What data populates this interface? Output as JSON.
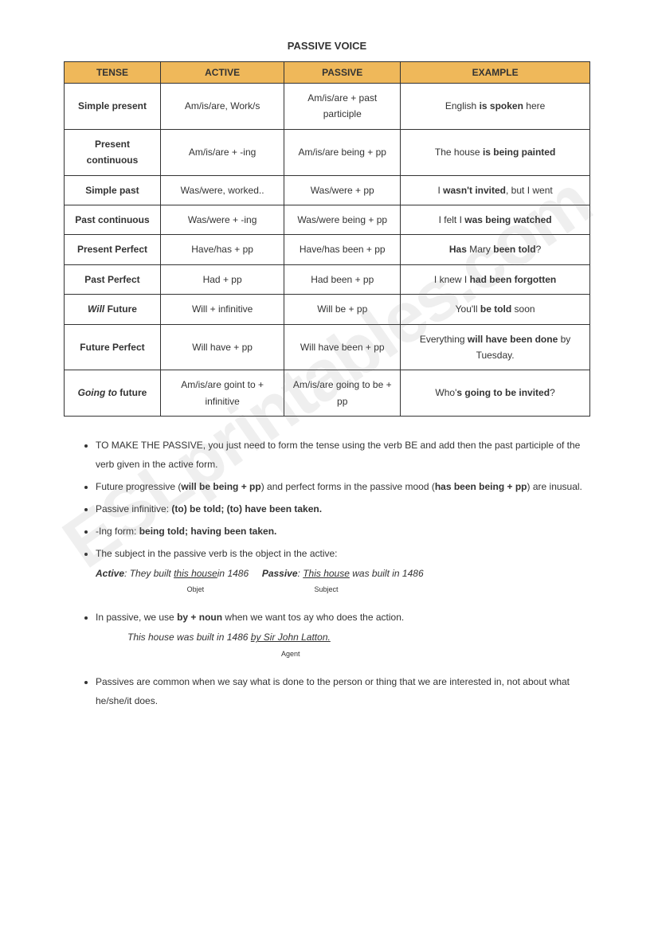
{
  "title": "PASSIVE VOICE",
  "watermark": "ESLprintables.com",
  "table": {
    "headers": [
      "TENSE",
      "ACTIVE",
      "PASSIVE",
      "EXAMPLE"
    ],
    "header_bg": "#efb85a",
    "border_color": "#333333",
    "rows": [
      {
        "tense_html": "Simple present",
        "active": "Am/is/are, Work/s",
        "passive": "Am/is/are + past participle",
        "example_html": "English <b>is spoken</b> here"
      },
      {
        "tense_html": "Present continuous",
        "active": "Am/is/are + -ing",
        "passive": "Am/is/are being + pp",
        "example_html": "The house <b>is being painted</b>"
      },
      {
        "tense_html": "Simple past",
        "active": "Was/were, worked..",
        "passive": "Was/were + pp",
        "example_html": "I <b>wasn't invited</b>, but I went"
      },
      {
        "tense_html": "Past continuous",
        "active": "Was/were + -ing",
        "passive": "Was/were being + pp",
        "example_html": "I felt I <b>was being watched</b>"
      },
      {
        "tense_html": "Present Perfect",
        "active": "Have/has + pp",
        "passive": "Have/has been + pp",
        "example_html": "<b>Has</b> Mary <b>been told</b>?"
      },
      {
        "tense_html": "Past Perfect",
        "active": "Had + pp",
        "passive": "Had been + pp",
        "example_html": "I knew I <b>had been forgotten</b>"
      },
      {
        "tense_html": "<i>Will</i> Future",
        "active": "Will + infinitive",
        "passive": "Will be + pp",
        "example_html": "You'll <b>be told</b> soon"
      },
      {
        "tense_html": "Future Perfect",
        "active": "Will have + pp",
        "passive": "Will have been + pp",
        "example_html": "Everything <b>will have been done</b> by Tuesday."
      },
      {
        "tense_html": "<i>Going to</i> future",
        "active": "Am/is/are goint to + infinitive",
        "passive": "Am/is/are going to be + pp",
        "example_html": "Who'<b>s going to be invited</b>?"
      }
    ]
  },
  "notes": [
    "TO MAKE THE PASSIVE, you just need to form the tense using the verb BE and add then the past participle of the verb given in the active form.",
    "Future progressive  (<b>will be being + pp</b>) and perfect forms in the passive mood (<b>has been being + pp</b>) are inusual.",
    "Passive infinitive: <b>(to) be told; (to) have been taken.</b>",
    "-Ing form: <b>being told; having been taken.</b>",
    "The subject in the passive verb is the object in the active:"
  ],
  "example_active_passive": {
    "active_label": "Active",
    "active_text_before": ": They built ",
    "active_underlined": "this house ",
    "active_sublabel": "Objet",
    "active_text_after": "in 1486",
    "passive_label": "Passive",
    "passive_text_before": ": ",
    "passive_underlined": "This house",
    "passive_sublabel": "Subject",
    "passive_text_after": " was built in 1486"
  },
  "notes2": [
    "In passive, we use <b>by + noun</b> when we want tos ay who does the action."
  ],
  "by_example": {
    "text_before": "This house was built in 1486 ",
    "underlined": "by Sir John Latton.",
    "sublabel": "Agent"
  },
  "notes3": [
    "Passives are common when we say what is done to the person or thing that we are interested in, not about what he/she/it does."
  ]
}
